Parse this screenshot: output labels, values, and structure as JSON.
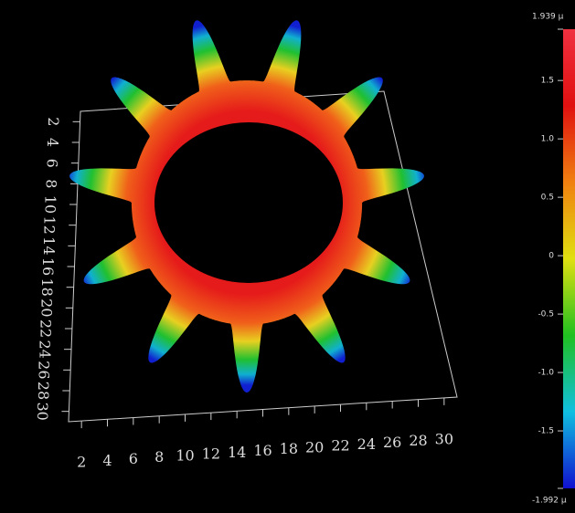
{
  "chart_data": {
    "type": "surface3d",
    "xlim": [
      1,
      31
    ],
    "xticks": [
      2,
      4,
      6,
      8,
      10,
      12,
      14,
      16,
      18,
      20,
      22,
      24,
      26,
      28,
      30
    ],
    "ylim": [
      1,
      31
    ],
    "yticks": [
      2,
      4,
      6,
      8,
      10,
      12,
      14,
      16,
      18,
      20,
      22,
      24,
      26,
      28,
      30
    ],
    "zlim": [
      -1.992,
      1.939
    ],
    "zticks": [
      {
        "value": 1.939,
        "label": "1.939 µ"
      },
      1.5,
      {
        "value": 1,
        "label": "1.0"
      },
      0.5,
      0,
      -0.5,
      {
        "value": -1,
        "label": "-1.0"
      },
      -1.5,
      {
        "value": -1.992,
        "label": "-1.992 µ"
      }
    ],
    "colormap": [
      "#1010d0",
      "#10c0e0",
      "#20c020",
      "#e0e010",
      "#f08010",
      "#e01010",
      "#f03040"
    ]
  }
}
